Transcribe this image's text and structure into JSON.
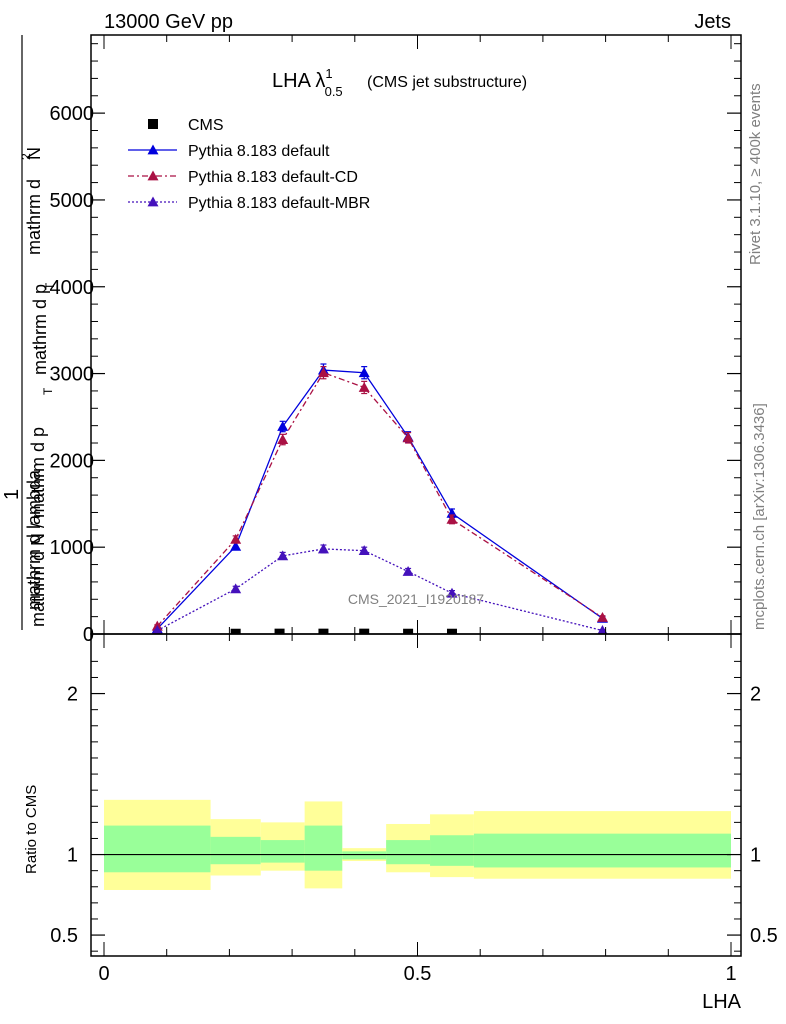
{
  "header": {
    "left": "13000 GeV pp",
    "right": "Jets"
  },
  "side_labels": {
    "rivet": "Rivet 3.1.10, ≥ 400k events",
    "mcplots": "mcplots.cern.ch [arXiv:1306.3436]"
  },
  "colors": {
    "cms": "#000000",
    "default": "#0000dd",
    "cd": "#aa1144",
    "mbr": "#4411bb",
    "band_outer": "#ffff99",
    "band_inner": "#99ff99"
  },
  "chart_data": [
    {
      "type": "line",
      "title": "LHA λ",
      "title_sup": "1",
      "title_sub": "0.5",
      "title_suffix": "(CMS jet substructure)",
      "ylabel_num_top": "mathrm d",
      "ylabel_num_sup": "2",
      "ylabel_num_mid": "N",
      "ylabel_num_bottom": "mathrm d p",
      "ylabel_num_bottom_sub": "T",
      "ylabel_num_end": "mathrm d lambda",
      "ylabel_one": "1",
      "ylabel_den": "mathrm d N / mathrm d p",
      "ylabel_den_sub": "T",
      "xlim": [
        0,
        1
      ],
      "ylim": [
        0,
        6900
      ],
      "yticks": [
        0,
        1000,
        2000,
        3000,
        4000,
        5000,
        6000
      ],
      "ytick_labels": [
        "0",
        "1000",
        "2000",
        "3000",
        "4000",
        "5000",
        "6000"
      ],
      "watermark": "CMS_2021_I1920187",
      "legend": [
        {
          "label": "CMS",
          "marker": "square",
          "color": "#000000",
          "style": "none"
        },
        {
          "label": "Pythia 8.183 default",
          "marker": "triangle",
          "color": "#0000dd",
          "style": "solid"
        },
        {
          "label": "Pythia 8.183 default-CD",
          "marker": "triangle",
          "color": "#aa1144",
          "style": "dashdot"
        },
        {
          "label": "Pythia 8.183 default-MBR",
          "marker": "triangle",
          "color": "#4411bb",
          "style": "dotted"
        }
      ],
      "series": [
        {
          "name": "CMS",
          "x": [
            0.21,
            0.28,
            0.35,
            0.415,
            0.485,
            0.555
          ],
          "y": [
            3,
            4,
            4,
            4,
            3,
            3
          ]
        },
        {
          "name": "Pythia 8.183 default",
          "x": [
            0.085,
            0.21,
            0.285,
            0.35,
            0.415,
            0.485,
            0.555,
            0.795
          ],
          "y": [
            60,
            1010,
            2390,
            3040,
            3010,
            2270,
            1390,
            180
          ],
          "err": [
            15,
            40,
            60,
            70,
            70,
            60,
            50,
            20
          ]
        },
        {
          "name": "Pythia 8.183 default-CD",
          "x": [
            0.085,
            0.21,
            0.285,
            0.35,
            0.415,
            0.485,
            0.555,
            0.795
          ],
          "y": [
            90,
            1090,
            2240,
            3010,
            2840,
            2260,
            1320,
            190
          ],
          "err": [
            15,
            40,
            60,
            70,
            70,
            60,
            50,
            20
          ]
        },
        {
          "name": "Pythia 8.183 default-MBR",
          "x": [
            0.085,
            0.21,
            0.285,
            0.35,
            0.415,
            0.485,
            0.555,
            0.795
          ],
          "y": [
            40,
            520,
            900,
            980,
            960,
            720,
            470,
            40
          ],
          "err": [
            10,
            30,
            40,
            45,
            40,
            35,
            30,
            10
          ]
        }
      ]
    },
    {
      "type": "area",
      "ylabel": "Ratio to CMS",
      "xlabel": "LHA",
      "xlim": [
        0,
        1
      ],
      "ylim": [
        0.37,
        2.37
      ],
      "xticks": [
        0,
        0.5,
        1
      ],
      "xtick_labels": [
        "0",
        "0.5",
        "1"
      ],
      "ytick_labels_left": [
        "0.5",
        "1",
        "2"
      ],
      "ytick_labels_right": [
        "0.5",
        "1",
        "2"
      ],
      "ytick_values": [
        0.5,
        1,
        2
      ],
      "reference_line": 1,
      "bins": [
        {
          "lo": 0.0,
          "hi": 0.17,
          "outer": [
            0.78,
            1.34
          ],
          "inner": [
            0.89,
            1.18
          ]
        },
        {
          "lo": 0.17,
          "hi": 0.25,
          "outer": [
            0.87,
            1.22
          ],
          "inner": [
            0.94,
            1.11
          ]
        },
        {
          "lo": 0.25,
          "hi": 0.32,
          "outer": [
            0.9,
            1.2
          ],
          "inner": [
            0.95,
            1.09
          ]
        },
        {
          "lo": 0.32,
          "hi": 0.38,
          "outer": [
            0.79,
            1.33
          ],
          "inner": [
            0.9,
            1.18
          ]
        },
        {
          "lo": 0.38,
          "hi": 0.45,
          "outer": [
            0.96,
            1.04
          ],
          "inner": [
            0.97,
            1.02
          ]
        },
        {
          "lo": 0.45,
          "hi": 0.52,
          "outer": [
            0.89,
            1.19
          ],
          "inner": [
            0.94,
            1.09
          ]
        },
        {
          "lo": 0.52,
          "hi": 0.59,
          "outer": [
            0.86,
            1.25
          ],
          "inner": [
            0.93,
            1.12
          ]
        },
        {
          "lo": 0.59,
          "hi": 1.0,
          "outer": [
            0.85,
            1.27
          ],
          "inner": [
            0.92,
            1.13
          ]
        }
      ]
    }
  ]
}
